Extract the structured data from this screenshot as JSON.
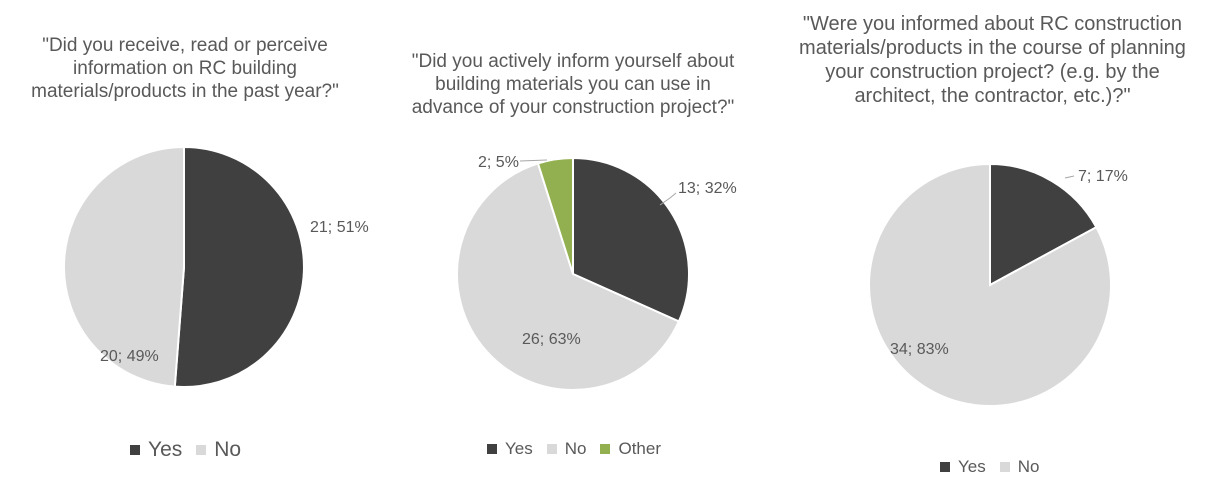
{
  "colors": {
    "yes": "#404040",
    "no": "#d9d9d9",
    "other": "#92b050",
    "text": "#595959"
  },
  "chart_data": [
    {
      "type": "pie",
      "title": "\"Did you receive, read or perceive\ninformation on RC building\nmaterials/products in the past year?\"",
      "categories": [
        "Yes",
        "No"
      ],
      "values": [
        21,
        20
      ],
      "labels": [
        "21; 51%",
        "20; 49%"
      ],
      "legend": "bottom"
    },
    {
      "type": "pie",
      "title": "\"Did you actively inform yourself about\nbuilding materials you can use in\nadvance of your construction project?\"",
      "categories": [
        "Yes",
        "No",
        "Other"
      ],
      "values": [
        13,
        26,
        2
      ],
      "labels": [
        "13; 32%",
        "26; 63%",
        "2; 5%"
      ],
      "legend": "bottom"
    },
    {
      "type": "pie",
      "title": "\"Were you informed about RC construction\nmaterials/products in the course of planning\nyour construction project? (e.g. by the\narchitect, the contractor, etc.)?\"",
      "categories": [
        "Yes",
        "No"
      ],
      "values": [
        7,
        34
      ],
      "labels": [
        "7; 17%",
        "34; 83%"
      ],
      "legend": "bottom"
    }
  ]
}
